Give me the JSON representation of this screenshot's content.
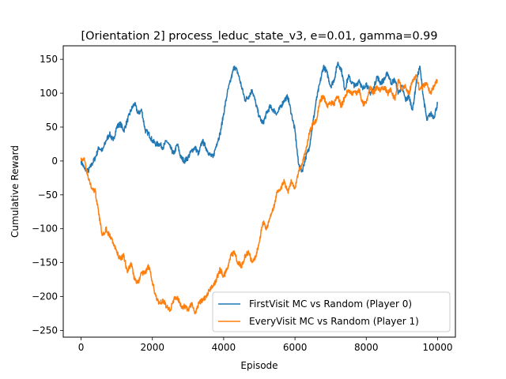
{
  "chart_data": {
    "type": "line",
    "title": "[Orientation 2] process_leduc_state_v3, e=0.01, gamma=0.99",
    "xlabel": "Episode",
    "ylabel": "Cumulative Reward",
    "xlim": [
      -500,
      10500
    ],
    "ylim": [
      -260,
      170
    ],
    "xticks": [
      0,
      2000,
      4000,
      6000,
      8000,
      10000
    ],
    "yticks": [
      -250,
      -200,
      -150,
      -100,
      -50,
      0,
      50,
      100,
      150
    ],
    "grid": false,
    "legend_position": "lower-right",
    "noise": 4,
    "series": [
      {
        "name": "FirstVisit MC vs Random (Player 0)",
        "color": "#1f77b4",
        "x": [
          0,
          100,
          200,
          300,
          400,
          500,
          600,
          700,
          800,
          900,
          1000,
          1100,
          1200,
          1300,
          1400,
          1500,
          1600,
          1700,
          1800,
          1900,
          2000,
          2100,
          2200,
          2300,
          2400,
          2500,
          2600,
          2700,
          2800,
          2900,
          3000,
          3100,
          3200,
          3300,
          3400,
          3500,
          3600,
          3700,
          3800,
          3900,
          4000,
          4100,
          4200,
          4300,
          4400,
          4500,
          4600,
          4700,
          4800,
          4900,
          5000,
          5100,
          5200,
          5300,
          5400,
          5500,
          5600,
          5700,
          5800,
          5900,
          6000,
          6100,
          6200,
          6300,
          6400,
          6500,
          6600,
          6700,
          6800,
          6900,
          7000,
          7100,
          7200,
          7300,
          7400,
          7500,
          7600,
          7700,
          7800,
          7900,
          8000,
          8100,
          8200,
          8300,
          8400,
          8500,
          8600,
          8700,
          8800,
          8900,
          9000,
          9100,
          9200,
          9300,
          9400,
          9500,
          9600,
          9700,
          9800,
          9900,
          10000
        ],
        "y": [
          0,
          -12,
          -15,
          -5,
          5,
          20,
          15,
          30,
          40,
          30,
          50,
          55,
          45,
          60,
          75,
          85,
          70,
          75,
          45,
          40,
          30,
          25,
          25,
          20,
          30,
          20,
          10,
          25,
          5,
          0,
          5,
          15,
          20,
          10,
          30,
          20,
          10,
          5,
          25,
          40,
          70,
          100,
          120,
          140,
          130,
          110,
          90,
          95,
          105,
          85,
          65,
          55,
          70,
          80,
          75,
          70,
          80,
          90,
          95,
          70,
          45,
          -5,
          -15,
          5,
          20,
          55,
          90,
          115,
          140,
          130,
          110,
          120,
          145,
          135,
          105,
          125,
          115,
          110,
          120,
          105,
          115,
          100,
          105,
          125,
          115,
          120,
          130,
          115,
          120,
          100,
          110,
          90,
          95,
          75,
          115,
          140,
          95,
          60,
          70,
          65,
          85
        ]
      },
      {
        "name": "EveryVisit MC vs Random (Player 1)",
        "color": "#ff7f0e",
        "x": [
          0,
          100,
          200,
          300,
          400,
          500,
          600,
          700,
          800,
          900,
          1000,
          1100,
          1200,
          1300,
          1400,
          1500,
          1600,
          1700,
          1800,
          1900,
          2000,
          2100,
          2200,
          2300,
          2400,
          2500,
          2600,
          2700,
          2800,
          2900,
          3000,
          3100,
          3200,
          3300,
          3400,
          3500,
          3600,
          3700,
          3800,
          3900,
          4000,
          4100,
          4200,
          4300,
          4400,
          4500,
          4600,
          4700,
          4800,
          4900,
          5000,
          5100,
          5200,
          5300,
          5400,
          5500,
          5600,
          5700,
          5800,
          5900,
          6000,
          6100,
          6200,
          6300,
          6400,
          6500,
          6600,
          6700,
          6800,
          6900,
          7000,
          7100,
          7200,
          7300,
          7400,
          7500,
          7600,
          7700,
          7800,
          7900,
          8000,
          8100,
          8200,
          8300,
          8400,
          8500,
          8600,
          8700,
          8800,
          8900,
          9000,
          9100,
          9200,
          9300,
          9400,
          9500,
          9600,
          9700,
          9800,
          9900,
          10000
        ],
        "y": [
          5,
          0,
          -25,
          -40,
          -45,
          -80,
          -110,
          -100,
          -110,
          -120,
          -135,
          -145,
          -140,
          -165,
          -150,
          -175,
          -180,
          -165,
          -165,
          -155,
          -180,
          -200,
          -210,
          -205,
          -215,
          -220,
          -205,
          -200,
          -215,
          -215,
          -220,
          -210,
          -225,
          -210,
          -205,
          -200,
          -190,
          -185,
          -175,
          -160,
          -170,
          -160,
          -140,
          -135,
          -150,
          -155,
          -140,
          -135,
          -150,
          -140,
          -120,
          -90,
          -100,
          -85,
          -70,
          -45,
          -40,
          -30,
          -45,
          -30,
          -40,
          -15,
          -5,
          15,
          40,
          55,
          60,
          90,
          95,
          80,
          85,
          85,
          95,
          80,
          95,
          105,
          100,
          100,
          105,
          85,
          85,
          110,
          100,
          110,
          105,
          110,
          100,
          105,
          90,
          120,
          105,
          110,
          100,
          120,
          125,
          105,
          110,
          115,
          100,
          110,
          120
        ]
      }
    ]
  }
}
